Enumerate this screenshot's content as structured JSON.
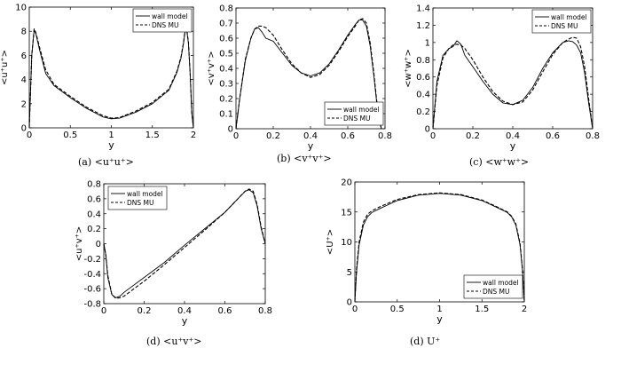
{
  "chart_data": [
    {
      "type": "line",
      "caption": "(a)  <u⁺u⁺>",
      "xlabel": "y",
      "ylabel": "<u⁺u⁺>",
      "xlim": [
        0,
        2
      ],
      "ylim": [
        0,
        10
      ],
      "xticks": [
        0,
        0.5,
        1,
        1.5,
        2
      ],
      "xtick_labels": [
        "0",
        "0.5",
        "1",
        "1.5",
        "2"
      ],
      "yticks": [
        0,
        2,
        4,
        6,
        8,
        10
      ],
      "ytick_labels": [
        "0",
        "2",
        "4",
        "6",
        "8",
        "10"
      ],
      "legend": "top-right",
      "series": [
        {
          "name": "wall model",
          "style": "solid",
          "x": [
            0,
            0.03,
            0.06,
            0.08,
            0.12,
            0.2,
            0.3,
            0.5,
            0.7,
            0.9,
            1.0,
            1.1,
            1.3,
            1.5,
            1.7,
            1.8,
            1.85,
            1.88,
            1.9,
            1.92,
            1.94,
            1.96,
            1.98,
            2.0
          ],
          "y": [
            0,
            6.0,
            8.1,
            7.8,
            6.6,
            4.5,
            3.5,
            2.5,
            1.6,
            0.9,
            0.75,
            0.8,
            1.3,
            2.0,
            3.1,
            4.6,
            5.8,
            7.0,
            8.1,
            8.0,
            7.0,
            4.5,
            1.2,
            0
          ]
        },
        {
          "name": "DNS MU",
          "style": "dashed",
          "x": [
            0,
            0.03,
            0.06,
            0.08,
            0.12,
            0.2,
            0.3,
            0.5,
            0.7,
            0.9,
            1.0,
            1.1,
            1.3,
            1.5,
            1.7,
            1.8,
            1.85,
            1.88,
            1.9,
            1.92,
            1.94,
            1.96,
            1.98,
            2.0
          ],
          "y": [
            0,
            6.0,
            8.2,
            7.9,
            6.8,
            4.8,
            3.6,
            2.6,
            1.7,
            1.0,
            0.8,
            0.85,
            1.4,
            2.1,
            3.2,
            4.7,
            5.9,
            7.1,
            8.2,
            8.1,
            7.1,
            4.6,
            1.3,
            0
          ]
        }
      ]
    },
    {
      "type": "line",
      "caption": "(b)  <v⁺v⁺>",
      "xlabel": "y",
      "ylabel": "<v⁺v⁺>",
      "xlim": [
        0,
        0.8
      ],
      "ylim": [
        0,
        0.8
      ],
      "xticks": [
        0,
        0.2,
        0.4,
        0.6,
        0.8
      ],
      "xtick_labels": [
        "0",
        "0.2",
        "0.4",
        "0.6",
        "0.8"
      ],
      "yticks": [
        0,
        0.1,
        0.2,
        0.3,
        0.4,
        0.5,
        0.6,
        0.7,
        0.8
      ],
      "ytick_labels": [
        "0",
        "0.1",
        "0.2",
        "0.3",
        "0.4",
        "0.5",
        "0.6",
        "0.7",
        "0.8"
      ],
      "legend": "bottom-right",
      "series": [
        {
          "name": "wall model",
          "style": "solid",
          "x": [
            0,
            0.02,
            0.05,
            0.08,
            0.1,
            0.12,
            0.14,
            0.16,
            0.2,
            0.25,
            0.3,
            0.35,
            0.4,
            0.45,
            0.5,
            0.55,
            0.6,
            0.64,
            0.66,
            0.68,
            0.7,
            0.72,
            0.74,
            0.76,
            0.78
          ],
          "y": [
            0,
            0.2,
            0.45,
            0.6,
            0.66,
            0.67,
            0.64,
            0.6,
            0.58,
            0.5,
            0.42,
            0.37,
            0.35,
            0.37,
            0.43,
            0.52,
            0.62,
            0.69,
            0.72,
            0.72,
            0.68,
            0.55,
            0.35,
            0.12,
            0
          ]
        },
        {
          "name": "DNS MU",
          "style": "dashed",
          "x": [
            0,
            0.02,
            0.05,
            0.08,
            0.1,
            0.12,
            0.14,
            0.16,
            0.2,
            0.25,
            0.3,
            0.35,
            0.4,
            0.45,
            0.5,
            0.55,
            0.6,
            0.64,
            0.66,
            0.68,
            0.7,
            0.72,
            0.74,
            0.76,
            0.78
          ],
          "y": [
            0,
            0.2,
            0.46,
            0.6,
            0.66,
            0.68,
            0.68,
            0.67,
            0.62,
            0.52,
            0.43,
            0.37,
            0.34,
            0.36,
            0.42,
            0.51,
            0.61,
            0.68,
            0.72,
            0.73,
            0.7,
            0.57,
            0.37,
            0.13,
            0
          ]
        }
      ]
    },
    {
      "type": "line",
      "caption": "(c)  <w⁺w⁺>",
      "xlabel": "y",
      "ylabel": "<w⁺w⁺>",
      "xlim": [
        0,
        0.8
      ],
      "ylim": [
        0,
        1.4
      ],
      "xticks": [
        0,
        0.2,
        0.4,
        0.6,
        0.8
      ],
      "xtick_labels": [
        "0",
        "0.2",
        "0.4",
        "0.6",
        "0.8"
      ],
      "yticks": [
        0,
        0.2,
        0.4,
        0.6,
        0.8,
        1.0,
        1.2,
        1.4
      ],
      "ytick_labels": [
        "0",
        "0.2",
        "0.4",
        "0.6",
        "0.8",
        "1",
        "1.2",
        "1.4"
      ],
      "legend": "top-right",
      "series": [
        {
          "name": "wall model",
          "style": "solid",
          "x": [
            0,
            0.02,
            0.05,
            0.08,
            0.1,
            0.12,
            0.14,
            0.16,
            0.2,
            0.25,
            0.3,
            0.35,
            0.4,
            0.45,
            0.5,
            0.55,
            0.6,
            0.65,
            0.68,
            0.7,
            0.72,
            0.74,
            0.76,
            0.78,
            0.8
          ],
          "y": [
            0,
            0.55,
            0.85,
            0.93,
            0.95,
            1.02,
            0.98,
            0.85,
            0.72,
            0.55,
            0.4,
            0.3,
            0.28,
            0.33,
            0.48,
            0.7,
            0.88,
            1.0,
            1.02,
            1.01,
            0.97,
            0.88,
            0.65,
            0.3,
            0
          ]
        },
        {
          "name": "DNS MU",
          "style": "dashed",
          "x": [
            0,
            0.02,
            0.05,
            0.08,
            0.1,
            0.12,
            0.14,
            0.16,
            0.2,
            0.25,
            0.3,
            0.35,
            0.4,
            0.45,
            0.5,
            0.55,
            0.6,
            0.65,
            0.68,
            0.7,
            0.72,
            0.74,
            0.76,
            0.78,
            0.8
          ],
          "y": [
            0,
            0.5,
            0.82,
            0.93,
            0.97,
            0.98,
            0.97,
            0.93,
            0.8,
            0.6,
            0.43,
            0.32,
            0.28,
            0.31,
            0.45,
            0.66,
            0.86,
            1.0,
            1.04,
            1.06,
            1.05,
            0.95,
            0.72,
            0.35,
            0
          ]
        }
      ]
    },
    {
      "type": "line",
      "caption": "(d)  <u⁺v⁺>",
      "xlabel": "y",
      "ylabel": "<u⁺v⁺>",
      "xlim": [
        0,
        0.8
      ],
      "ylim": [
        -0.8,
        0.8
      ],
      "xticks": [
        0,
        0.2,
        0.4,
        0.6,
        0.8
      ],
      "xtick_labels": [
        "0",
        "0.2",
        "0.4",
        "0.6",
        "0.8"
      ],
      "yticks": [
        -0.8,
        -0.6,
        -0.4,
        -0.2,
        0,
        0.2,
        0.4,
        0.6,
        0.8
      ],
      "ytick_labels": [
        "-0.8",
        "-0.6",
        "-0.4",
        "-0.2",
        "0",
        "0.2",
        "0.4",
        "0.6",
        "0.8"
      ],
      "legend": "top-left",
      "series": [
        {
          "name": "wall model",
          "style": "solid",
          "x": [
            0,
            0.01,
            0.02,
            0.04,
            0.06,
            0.08,
            0.1,
            0.2,
            0.3,
            0.4,
            0.5,
            0.6,
            0.7,
            0.72,
            0.74,
            0.76,
            0.78,
            0.8
          ],
          "y": [
            0,
            -0.15,
            -0.45,
            -0.68,
            -0.72,
            -0.7,
            -0.65,
            -0.45,
            -0.25,
            -0.02,
            0.2,
            0.42,
            0.7,
            0.72,
            0.68,
            0.5,
            0.2,
            0
          ]
        },
        {
          "name": "DNS MU",
          "style": "dashed",
          "x": [
            0,
            0.01,
            0.02,
            0.04,
            0.06,
            0.08,
            0.1,
            0.2,
            0.3,
            0.4,
            0.5,
            0.6,
            0.7,
            0.72,
            0.74,
            0.76,
            0.78,
            0.8
          ],
          "y": [
            0,
            -0.15,
            -0.42,
            -0.68,
            -0.73,
            -0.72,
            -0.7,
            -0.5,
            -0.28,
            -0.05,
            0.18,
            0.42,
            0.7,
            0.73,
            0.7,
            0.52,
            0.22,
            0
          ]
        }
      ]
    },
    {
      "type": "line",
      "caption": "(d)  U⁺",
      "xlabel": "y",
      "ylabel": "<U⁺>",
      "xlim": [
        0,
        2
      ],
      "ylim": [
        0,
        20
      ],
      "xticks": [
        0,
        0.5,
        1,
        1.5,
        2
      ],
      "xtick_labels": [
        "0",
        "0.5",
        "1",
        "1.5",
        "2"
      ],
      "yticks": [
        0,
        5,
        10,
        15,
        20
      ],
      "ytick_labels": [
        "0",
        "5",
        "10",
        "15",
        "20"
      ],
      "legend": "bottom-right",
      "series": [
        {
          "name": "wall model",
          "style": "solid",
          "x": [
            0,
            0.02,
            0.05,
            0.1,
            0.15,
            0.2,
            0.3,
            0.5,
            0.75,
            1.0,
            1.25,
            1.5,
            1.7,
            1.8,
            1.85,
            1.9,
            1.95,
            1.98,
            2.0
          ],
          "y": [
            0,
            5.0,
            9.5,
            12.8,
            14.2,
            14.9,
            15.6,
            16.9,
            17.8,
            18.1,
            17.8,
            16.9,
            15.6,
            14.9,
            14.2,
            12.8,
            9.5,
            5.0,
            0
          ]
        },
        {
          "name": "DNS MU",
          "style": "dashed",
          "x": [
            0,
            0.02,
            0.05,
            0.1,
            0.15,
            0.2,
            0.3,
            0.5,
            0.75,
            1.0,
            1.25,
            1.5,
            1.7,
            1.8,
            1.85,
            1.9,
            1.95,
            1.98,
            2.0
          ],
          "y": [
            0,
            5.5,
            10.0,
            13.3,
            14.6,
            15.2,
            15.9,
            17.1,
            17.9,
            18.2,
            17.9,
            17.0,
            15.7,
            15.0,
            14.3,
            13.0,
            9.8,
            5.2,
            0
          ]
        }
      ]
    }
  ]
}
